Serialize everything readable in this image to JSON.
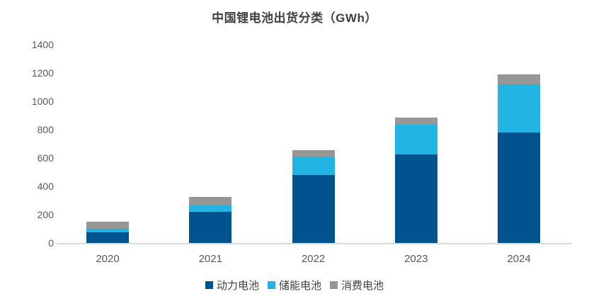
{
  "title": "中国锂电池出货分类（GWh）",
  "colors": {
    "power_blue": "#00538F",
    "storage_cyan": "#22B5E3",
    "consumer_gray": "#969696",
    "axis_line": "#D9D9D9",
    "tick_text": "#595959",
    "title_text": "#404040",
    "background": "#FFFFFF"
  },
  "chart_data": {
    "type": "bar",
    "stacked": true,
    "title": "中国锂电池出货分类（GWh）",
    "xlabel": "",
    "ylabel": "",
    "categories": [
      "2020",
      "2021",
      "2022",
      "2023",
      "2024"
    ],
    "series": [
      {
        "name": "动力电池",
        "color": "#00538F",
        "values": [
          75,
          220,
          480,
          625,
          780
        ]
      },
      {
        "name": "储能电池",
        "color": "#22B5E3",
        "values": [
          25,
          48,
          130,
          210,
          340
        ]
      },
      {
        "name": "消费电池",
        "color": "#969696",
        "values": [
          50,
          55,
          45,
          50,
          70
        ]
      }
    ],
    "totals": [
      150,
      323,
      655,
      885,
      1190
    ],
    "ylim": [
      0,
      1400
    ],
    "yticks": [
      0,
      200,
      400,
      600,
      800,
      1000,
      1200,
      1400
    ],
    "grid": false,
    "legend_position": "bottom"
  }
}
